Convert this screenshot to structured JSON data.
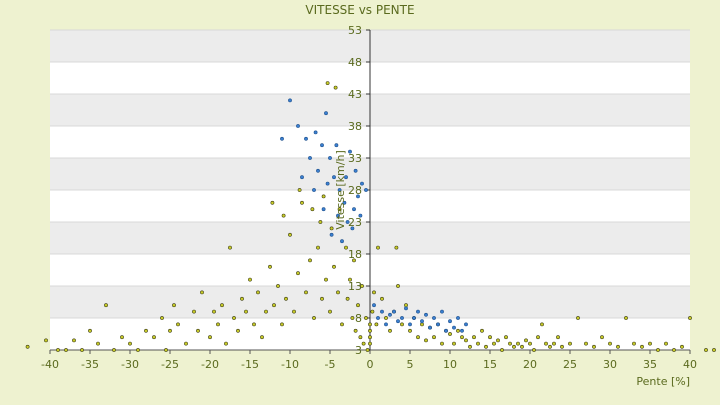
{
  "page": {
    "background": "#eef2d0"
  },
  "chart_data": {
    "type": "scatter",
    "title": "VITESSE vs PENTE",
    "xlabel": "Pente [%]",
    "ylabel": "Vitesse [km/h]",
    "xlim": [
      -40,
      40
    ],
    "ylim": [
      3,
      53
    ],
    "x_ticks": [
      "-40",
      "-35",
      "-30",
      "-25",
      "-20",
      "-15",
      "-10",
      "-5",
      "0",
      "5",
      "10",
      "15",
      "20",
      "25",
      "30",
      "35",
      "40"
    ],
    "y_ticks": [
      "3",
      "8",
      "13",
      "18",
      "23",
      "28",
      "33",
      "38",
      "43",
      "48",
      "53"
    ],
    "grid": true,
    "legend": "none",
    "colors": {
      "plot_background": "#ffffff",
      "band": "#ececec",
      "text": "#5a6a1e",
      "axis": "#555555",
      "marker_fill": "#c8cc28",
      "marker_edge": "#3a3a10",
      "series_blue": "#3a7fd0"
    },
    "series": [
      {
        "color": "#c8cc28",
        "points": [
          [
            -42.8,
            3.5
          ],
          [
            -40.5,
            4.5
          ],
          [
            -39,
            3
          ],
          [
            -38,
            3
          ],
          [
            -37,
            4.5
          ],
          [
            -36,
            3
          ],
          [
            -35,
            6
          ],
          [
            -34,
            4
          ],
          [
            -33,
            10
          ],
          [
            -32,
            3
          ],
          [
            -31,
            5
          ],
          [
            -30,
            4
          ],
          [
            -29,
            3
          ],
          [
            -28,
            6
          ],
          [
            -27,
            5
          ],
          [
            -26,
            8
          ],
          [
            -25.5,
            3
          ],
          [
            -25,
            6
          ],
          [
            -24.5,
            10
          ],
          [
            -24,
            7
          ],
          [
            -23,
            4
          ],
          [
            -22,
            9
          ],
          [
            -21.5,
            6
          ],
          [
            -21,
            12
          ],
          [
            -20,
            5
          ],
          [
            -19.5,
            9
          ],
          [
            -19,
            7
          ],
          [
            -18.5,
            10
          ],
          [
            -18,
            4
          ],
          [
            -17.5,
            19
          ],
          [
            -17,
            8
          ],
          [
            -16.5,
            6
          ],
          [
            -16,
            11
          ],
          [
            -15.5,
            9
          ],
          [
            -15,
            14
          ],
          [
            -14.5,
            7
          ],
          [
            -14,
            12
          ],
          [
            -13.5,
            5
          ],
          [
            -13,
            9
          ],
          [
            -12.5,
            16
          ],
          [
            -12.2,
            26
          ],
          [
            -12,
            10
          ],
          [
            -11.5,
            13
          ],
          [
            -11,
            7
          ],
          [
            -10.8,
            24
          ],
          [
            -10.5,
            11
          ],
          [
            -10,
            21
          ],
          [
            -9.5,
            9
          ],
          [
            -9,
            15
          ],
          [
            -8.8,
            28
          ],
          [
            -8.5,
            26
          ],
          [
            -8,
            12
          ],
          [
            -7.5,
            17
          ],
          [
            -7.2,
            25
          ],
          [
            -7,
            8
          ],
          [
            -6.5,
            19
          ],
          [
            -6.2,
            23
          ],
          [
            -6,
            11
          ],
          [
            -5.8,
            27
          ],
          [
            -5.5,
            14
          ],
          [
            -5.3,
            44.7
          ],
          [
            -5,
            9
          ],
          [
            -4.8,
            22
          ],
          [
            -4.5,
            16
          ],
          [
            -4.3,
            44
          ],
          [
            -4,
            12
          ],
          [
            -3.8,
            25
          ],
          [
            -3.5,
            7
          ],
          [
            -3,
            19
          ],
          [
            -2.8,
            11
          ],
          [
            -2.5,
            14
          ],
          [
            -2.2,
            8
          ],
          [
            -2,
            17
          ],
          [
            -1.8,
            6
          ],
          [
            -1.5,
            10
          ],
          [
            -1.2,
            5
          ],
          [
            -1,
            13
          ],
          [
            -0.8,
            4
          ],
          [
            -0.5,
            8
          ],
          [
            -0.3,
            3
          ],
          [
            0,
            4
          ],
          [
            0,
            5
          ],
          [
            0,
            6
          ],
          [
            0,
            7
          ],
          [
            0.3,
            9
          ],
          [
            0.5,
            12
          ],
          [
            0.8,
            7
          ],
          [
            1,
            19
          ],
          [
            1.5,
            11
          ],
          [
            2,
            8
          ],
          [
            2.5,
            6
          ],
          [
            3,
            9
          ],
          [
            3.3,
            19
          ],
          [
            3.5,
            13
          ],
          [
            4,
            7
          ],
          [
            4.5,
            10
          ],
          [
            5,
            6
          ],
          [
            5.5,
            8
          ],
          [
            6,
            5
          ],
          [
            6.5,
            7
          ],
          [
            7,
            4.5
          ],
          [
            7.5,
            6.5
          ],
          [
            8,
            5
          ],
          [
            8.5,
            7
          ],
          [
            9,
            4
          ],
          [
            9.5,
            6
          ],
          [
            10,
            5.5
          ],
          [
            10.5,
            4
          ],
          [
            11,
            6
          ],
          [
            11.5,
            5
          ],
          [
            12,
            4.5
          ],
          [
            12.5,
            3.5
          ],
          [
            13,
            5
          ],
          [
            13.5,
            4
          ],
          [
            14,
            6
          ],
          [
            14.5,
            3.5
          ],
          [
            15,
            5
          ],
          [
            15.5,
            4
          ],
          [
            16,
            4.5
          ],
          [
            16.5,
            3
          ],
          [
            17,
            5
          ],
          [
            17.5,
            4
          ],
          [
            18,
            3.5
          ],
          [
            18.5,
            4
          ],
          [
            19,
            3.5
          ],
          [
            19.5,
            4.5
          ],
          [
            20,
            4
          ],
          [
            20.5,
            3
          ],
          [
            21,
            5
          ],
          [
            21.5,
            7
          ],
          [
            22,
            4
          ],
          [
            22.5,
            3.5
          ],
          [
            23,
            4
          ],
          [
            23.5,
            5
          ],
          [
            24,
            3.5
          ],
          [
            25,
            4
          ],
          [
            26,
            8
          ],
          [
            27,
            4
          ],
          [
            28,
            3.5
          ],
          [
            29,
            5
          ],
          [
            30,
            4
          ],
          [
            31,
            3.5
          ],
          [
            32,
            8
          ],
          [
            33,
            4
          ],
          [
            34,
            3.5
          ],
          [
            35,
            4
          ],
          [
            36,
            3
          ],
          [
            37,
            4
          ],
          [
            38,
            3
          ],
          [
            39,
            3.5
          ],
          [
            40,
            8
          ],
          [
            42,
            3
          ],
          [
            43,
            3
          ]
        ]
      },
      {
        "color": "#3a7fd0",
        "points": [
          [
            -11,
            36
          ],
          [
            -10,
            42
          ],
          [
            -9,
            38
          ],
          [
            -8.5,
            30
          ],
          [
            -8,
            36
          ],
          [
            -7.5,
            33
          ],
          [
            -7,
            28
          ],
          [
            -6.8,
            37
          ],
          [
            -6.5,
            31
          ],
          [
            -6,
            35
          ],
          [
            -5.8,
            25
          ],
          [
            -5.5,
            40
          ],
          [
            -5.3,
            29
          ],
          [
            -5,
            33
          ],
          [
            -4.8,
            21
          ],
          [
            -4.5,
            30
          ],
          [
            -4.2,
            35
          ],
          [
            -4,
            24
          ],
          [
            -3.8,
            28
          ],
          [
            -3.5,
            20
          ],
          [
            -3.2,
            26
          ],
          [
            -3,
            30
          ],
          [
            -2.8,
            23
          ],
          [
            -2.5,
            34
          ],
          [
            -2.2,
            22
          ],
          [
            -2,
            25
          ],
          [
            -1.8,
            31
          ],
          [
            -1.5,
            27
          ],
          [
            -1.2,
            24
          ],
          [
            -1,
            29
          ],
          [
            -0.5,
            28
          ],
          [
            0.5,
            10
          ],
          [
            1,
            8
          ],
          [
            1.5,
            9
          ],
          [
            2,
            7
          ],
          [
            2.5,
            8.5
          ],
          [
            3,
            9
          ],
          [
            3.5,
            7.5
          ],
          [
            4,
            8
          ],
          [
            4.5,
            9.5
          ],
          [
            5,
            7
          ],
          [
            5.5,
            8
          ],
          [
            6,
            9
          ],
          [
            6.5,
            7.5
          ],
          [
            7,
            8.5
          ],
          [
            7.5,
            6.5
          ],
          [
            8,
            8
          ],
          [
            8.5,
            7
          ],
          [
            9,
            9
          ],
          [
            9.5,
            6
          ],
          [
            10,
            7.5
          ],
          [
            10.5,
            6.5
          ],
          [
            11,
            8
          ],
          [
            11.5,
            6
          ],
          [
            12,
            7
          ]
        ]
      }
    ]
  }
}
